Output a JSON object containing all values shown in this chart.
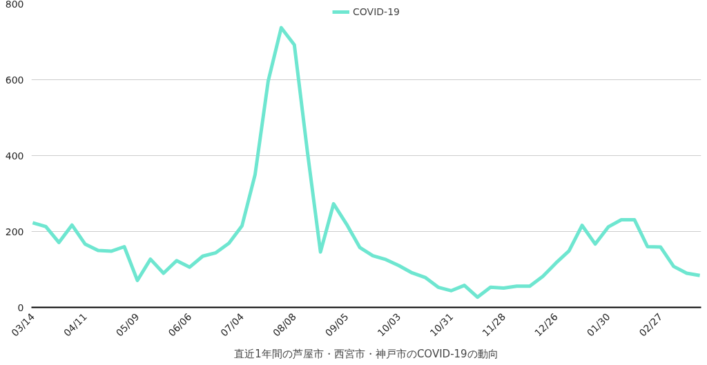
{
  "chart_data": {
    "type": "line",
    "xlabel": "直近1年間の芦屋市・西宮市・神戸市のCOVID-19の動向",
    "categories": [
      "03/14",
      null,
      null,
      null,
      "04/11",
      null,
      null,
      null,
      "05/09",
      null,
      null,
      null,
      "06/06",
      null,
      null,
      null,
      "07/04",
      null,
      null,
      null,
      "08/08",
      null,
      null,
      null,
      "09/05",
      null,
      null,
      null,
      "10/03",
      null,
      null,
      null,
      "10/31",
      null,
      null,
      null,
      "11/28",
      null,
      null,
      null,
      "12/26",
      null,
      null,
      null,
      "01/30",
      null,
      null,
      null,
      "02/27",
      null,
      null,
      null
    ],
    "series": [
      {
        "name": "COVID-19",
        "color": "#6ee6d0",
        "values": [
          223,
          213,
          171,
          217,
          167,
          150,
          148,
          160,
          71,
          127,
          90,
          123,
          106,
          135,
          144,
          169,
          215,
          350,
          596,
          737,
          692,
          410,
          146,
          273,
          219,
          158,
          136,
          126,
          110,
          91,
          79,
          53,
          44,
          58,
          27,
          53,
          51,
          56,
          56,
          82,
          117,
          149,
          216,
          167,
          212,
          231,
          231,
          160,
          159,
          108,
          90,
          84
        ]
      }
    ],
    "ylim": [
      0,
      800
    ],
    "yticks": [
      0,
      200,
      400,
      600,
      800
    ],
    "grid": "y",
    "legend": "top",
    "marker": "none",
    "line_style": "solid"
  }
}
